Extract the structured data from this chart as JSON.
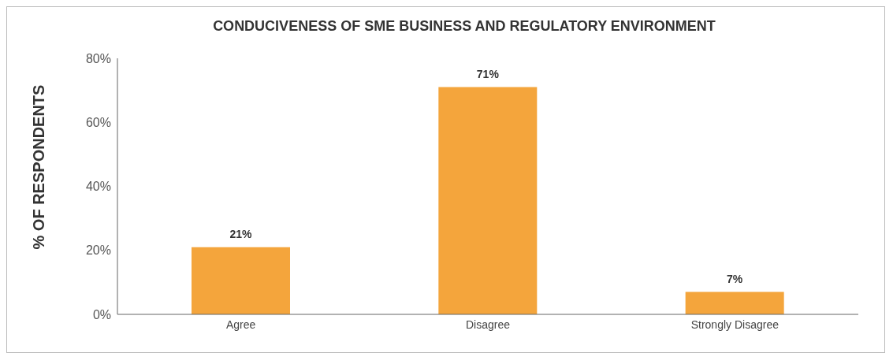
{
  "chart_data": {
    "type": "bar",
    "title": "CONDUCIVENESS OF SME BUSINESS AND REGULATORY ENVIRONMENT",
    "ylabel": "% OF RESPONDENTS",
    "categories": [
      "Agree",
      "Disagree",
      "Strongly Disagree"
    ],
    "values": [
      21,
      71,
      7
    ],
    "color": "#f4a53c",
    "value_labels": [
      "21%",
      "71%",
      "7%"
    ],
    "ylim": [
      0,
      80
    ],
    "yticks": [
      {
        "value": 0,
        "label": "0%"
      },
      {
        "value": 20,
        "label": "20%"
      },
      {
        "value": 40,
        "label": "40%"
      },
      {
        "value": 60,
        "label": "60%"
      },
      {
        "value": 80,
        "label": "80%"
      }
    ],
    "grid": false,
    "legend": false
  }
}
